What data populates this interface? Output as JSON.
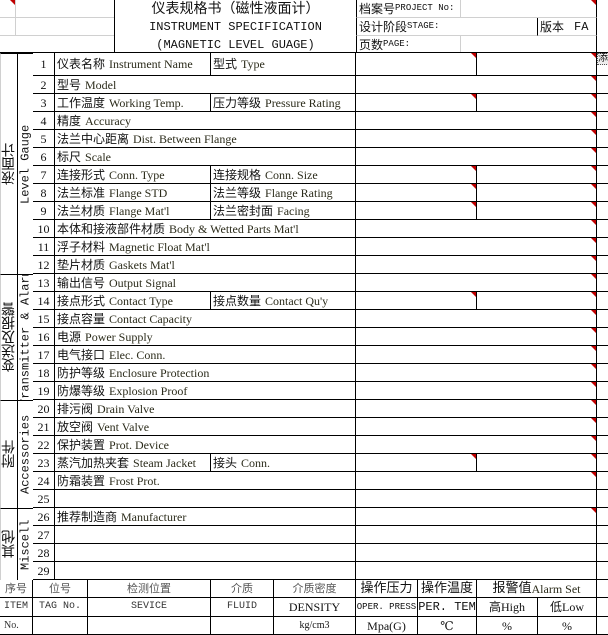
{
  "header": {
    "title_cn": "仪表规格书（磁性液面计）",
    "title_en": "INSTRUMENT SPECIFICATION",
    "subtitle_en": "(MAGNETIC LEVEL GUAGE)",
    "project_no_cn": "档案号",
    "project_no_en": "PROJECT No:",
    "stage_cn": "设计阶段",
    "stage_en": "STAGE:",
    "version_label": "版本",
    "version_value": "FA",
    "page_cn": "页数",
    "page_en": "PAGE:",
    "side_icon": "添"
  },
  "sections": [
    {
      "label_cn": "液面计",
      "label_en": "Level Gauge"
    },
    {
      "label_cn": "变送及报警",
      "label_en": "Transmitter & Alarm"
    },
    {
      "label_cn": "附件",
      "label_en": "Accessories"
    },
    {
      "label_cn": "其他",
      "label_en": "Miscell"
    }
  ],
  "rows": [
    {
      "num": "1",
      "cn": "仪表名称",
      "en": "Instrument Name",
      "cn2": "型式",
      "en2": "Type",
      "section": 0
    },
    {
      "num": "2",
      "cn": "型号",
      "en": "Model",
      "section": 0
    },
    {
      "num": "3",
      "cn": "工作温度",
      "en": "Working Temp.",
      "cn2": "压力等级",
      "en2": "Pressure Rating",
      "section": 0
    },
    {
      "num": "4",
      "cn": "精度",
      "en": "Accuracy",
      "section": 0
    },
    {
      "num": "5",
      "cn": "法兰中心距离",
      "en": "Dist. Between Flange",
      "section": 0
    },
    {
      "num": "6",
      "cn": "标尺",
      "en": "Scale",
      "section": 0
    },
    {
      "num": "7",
      "cn": "连接形式",
      "en": "Conn. Type",
      "cn2": "连接规格",
      "en2": "Conn.  Size",
      "section": 0
    },
    {
      "num": "8",
      "cn": "法兰标准",
      "en": "Flange STD",
      "cn2": "法兰等级",
      "en2": "Flange Rating",
      "section": 0
    },
    {
      "num": "9",
      "cn": "法兰材质",
      "en": "Flange Mat'l",
      "cn2": "法兰密封面",
      "en2": "Facing",
      "section": 0
    },
    {
      "num": "10",
      "cn": "本体和接液部件材质",
      "en": "Body & Wetted Parts Mat'l",
      "section": 0
    },
    {
      "num": "11",
      "cn": "浮子材料",
      "en": "Magnetic Float Mat'l",
      "section": 0
    },
    {
      "num": "12",
      "cn": "垫片材质",
      "en": "Gaskets Mat'l",
      "section": 0
    },
    {
      "num": "13",
      "cn": "输出信号",
      "en": "Output Signal",
      "section": 1
    },
    {
      "num": "14",
      "cn": "接点形式",
      "en": "Contact Type",
      "cn2": "接点数量",
      "en2": "Contact Qu'y",
      "section": 1
    },
    {
      "num": "15",
      "cn": "接点容量",
      "en": "Contact  Capacity",
      "section": 1
    },
    {
      "num": "16",
      "cn": "电源",
      "en": "Power Supply",
      "section": 1
    },
    {
      "num": "17",
      "cn": "电气接口",
      "en": "Elec. Conn.",
      "section": 1
    },
    {
      "num": "18",
      "cn": "防护等级",
      "en": "Enclosure Protection",
      "section": 1
    },
    {
      "num": "19",
      "cn": "防爆等级",
      "en": "Explosion Proof",
      "section": 1
    },
    {
      "num": "20",
      "cn": "排污阀",
      "en": "Drain Valve",
      "section": 2
    },
    {
      "num": "21",
      "cn": "放空阀",
      "en": "Vent Valve",
      "section": 2
    },
    {
      "num": "22",
      "cn": "保护装置",
      "en": "Prot. Device",
      "section": 2
    },
    {
      "num": "23",
      "cn": "蒸汽加热夹套",
      "en": "Steam Jacket",
      "cn2": "接头",
      "en2": "Conn.",
      "section": 2
    },
    {
      "num": "24",
      "cn": "防霜装置",
      "en": "Frost Prot.",
      "section": 2
    },
    {
      "num": "25",
      "cn": "",
      "en": "",
      "section": 2,
      "no_comment": true
    },
    {
      "num": "26",
      "cn": "推荐制造商",
      "en": "Manufacturer",
      "section": 3
    },
    {
      "num": "27",
      "cn": "",
      "en": "",
      "section": 3,
      "no_comment": true
    },
    {
      "num": "28",
      "cn": "",
      "en": "",
      "section": 3,
      "no_comment": true
    },
    {
      "num": "29",
      "cn": "",
      "en": "",
      "section": 3,
      "no_comment": true
    }
  ],
  "footer": {
    "row1": [
      "序号",
      "位号",
      "检测位置",
      "介质",
      "介质密度",
      "操作压力",
      "操作温度",
      "报警值"
    ],
    "alarm_en": "Alarm Set",
    "row2": [
      "ITEM",
      "TAG   No.",
      "SEVICE",
      "FLUID",
      "DENSITY",
      "OPER. PRESS",
      "OPER. TEMP",
      "高High",
      "低Low"
    ],
    "row3": [
      "No.",
      "",
      "",
      "",
      "kg/cm3",
      "Mpa(G)",
      "℃",
      "%",
      "%"
    ]
  },
  "colors": {
    "comment_marker": "#c00000",
    "grid": "#000000"
  }
}
